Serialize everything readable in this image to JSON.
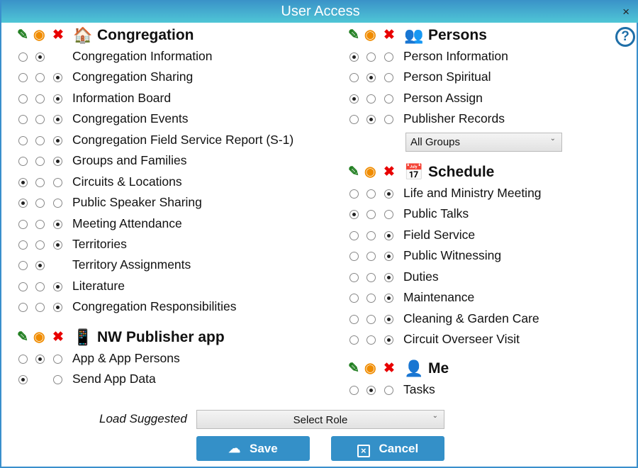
{
  "window": {
    "title": "User Access",
    "close": "×",
    "help": "?"
  },
  "header_icons": {
    "edit": "edit-icon",
    "view": "eye-icon",
    "none": "x-icon"
  },
  "sections": [
    {
      "title": "Congregation",
      "icon": "home-icon",
      "glyph": "🏠",
      "rows": [
        {
          "label": "Congregation Information",
          "radios": [
            false,
            true,
            null
          ]
        },
        {
          "label": "Congregation Sharing",
          "radios": [
            false,
            false,
            true
          ]
        },
        {
          "label": "Information Board",
          "radios": [
            false,
            false,
            true
          ]
        },
        {
          "label": "Congregation Events",
          "radios": [
            false,
            false,
            true
          ]
        },
        {
          "label": "Congregation Field Service Report (S-1)",
          "radios": [
            false,
            false,
            true
          ]
        },
        {
          "label": "Groups and Families",
          "radios": [
            false,
            false,
            true
          ]
        },
        {
          "label": "Circuits & Locations",
          "radios": [
            true,
            false,
            false
          ]
        },
        {
          "label": "Public Speaker Sharing",
          "radios": [
            true,
            false,
            false
          ]
        },
        {
          "label": "Meeting Attendance",
          "radios": [
            false,
            false,
            true
          ]
        },
        {
          "label": "Territories",
          "radios": [
            false,
            false,
            true
          ]
        },
        {
          "label": "Territory Assignments",
          "radios": [
            false,
            true,
            null
          ]
        },
        {
          "label": "Literature",
          "radios": [
            false,
            false,
            true
          ]
        },
        {
          "label": "Congregation Responsibilities",
          "radios": [
            false,
            false,
            true
          ]
        }
      ]
    },
    {
      "title": "NW Publisher app",
      "icon": "mobile-phone-icon",
      "glyph": "📱",
      "rows": [
        {
          "label": "App & App Persons",
          "radios": [
            false,
            true,
            false
          ]
        },
        {
          "label": "Send App Data",
          "radios": [
            true,
            null,
            false
          ]
        }
      ]
    },
    {
      "title": "Persons",
      "icon": "users-icon",
      "glyph": "👥",
      "rows": [
        {
          "label": "Person Information",
          "radios": [
            true,
            false,
            false
          ]
        },
        {
          "label": "Person Spiritual",
          "radios": [
            false,
            true,
            false
          ]
        },
        {
          "label": "Person Assign",
          "radios": [
            true,
            false,
            false
          ]
        },
        {
          "label": "Publisher Records",
          "radios": [
            false,
            true,
            false
          ]
        }
      ]
    },
    {
      "title": "Schedule",
      "icon": "calendar-icon",
      "glyph": "📅",
      "rows": [
        {
          "label": "Life and Ministry Meeting",
          "radios": [
            false,
            false,
            true
          ]
        },
        {
          "label": "Public Talks",
          "radios": [
            true,
            false,
            false
          ]
        },
        {
          "label": "Field Service",
          "radios": [
            false,
            false,
            true
          ]
        },
        {
          "label": "Public Witnessing",
          "radios": [
            false,
            false,
            true
          ]
        },
        {
          "label": "Duties",
          "radios": [
            false,
            false,
            true
          ]
        },
        {
          "label": "Maintenance",
          "radios": [
            false,
            false,
            true
          ]
        },
        {
          "label": "Cleaning & Garden Care",
          "radios": [
            false,
            false,
            true
          ]
        },
        {
          "label": "Circuit Overseer Visit",
          "radios": [
            false,
            false,
            true
          ]
        }
      ]
    },
    {
      "title": "Me",
      "icon": "user-icon",
      "glyph": "👤",
      "rows": [
        {
          "label": "Tasks",
          "radios": [
            false,
            true,
            false
          ]
        }
      ]
    }
  ],
  "groups_select": {
    "value": "All Groups"
  },
  "load_suggested": {
    "label": "Load Suggested",
    "value": "Select Role"
  },
  "buttons": {
    "save": "Save",
    "cancel": "Cancel"
  },
  "colors": {
    "titlebar": "#4fc6d6",
    "button": "#3490c8",
    "edit": "#1e7d1e",
    "view": "#f08c00",
    "none": "#e80000"
  }
}
